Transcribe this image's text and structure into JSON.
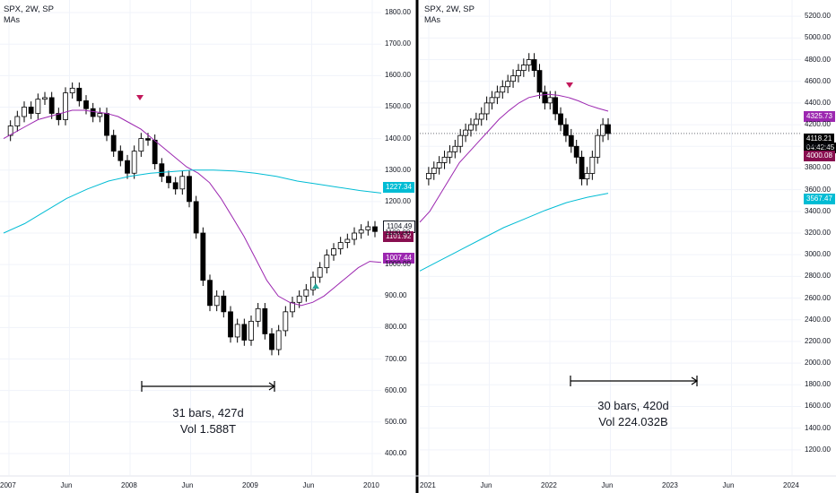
{
  "colors": {
    "background": "#ffffff",
    "grid": "#f0f3fa",
    "candle_up": "#ffffff",
    "candle_down": "#000000",
    "candle_border": "#000000",
    "ma_fast": "#9c27b0",
    "ma_slow": "#00bcd4",
    "divider": "#000000",
    "last_price_bg": "#000000",
    "ma_tag_bg": "#9c27b0",
    "ma_slow_tag_bg": "#00bcd4",
    "ma_dark_tag_bg": "#880e4f"
  },
  "panes": [
    {
      "title": "SPX, 2W, SP",
      "subtitle": "MAs",
      "y_ticks": [
        "1800.00",
        "1700.00",
        "1600.00",
        "1500.00",
        "1400.00",
        "1300.00",
        "1200.00",
        "1100.00",
        "1000.00",
        "900.00",
        "800.00",
        "700.00",
        "600.00",
        "500.00",
        "400.00"
      ],
      "x_ticks": [
        "2007",
        "Jun",
        "2008",
        "Jun",
        "2009",
        "Jun",
        "2010"
      ],
      "price_tags": [
        {
          "label": "1227.34",
          "kind": "ma-slow"
        },
        {
          "label": "1104.49",
          "kind": "last"
        },
        {
          "label": "1101.92",
          "kind": "ma-dark"
        },
        {
          "label": "1007.44",
          "kind": "ma-fast"
        }
      ],
      "measure": {
        "line1": "31 bars, 427d",
        "line2": "Vol 1.588T"
      },
      "chart_data": {
        "type": "line",
        "title": "SPX, 2W, SP",
        "ylim": [
          360,
          1840
        ],
        "y_scale": "linear",
        "close_path_approx": [
          1410,
          1440,
          1470,
          1500,
          1480,
          1525,
          1530,
          1480,
          1460,
          1545,
          1560,
          1520,
          1495,
          1470,
          1480,
          1410,
          1360,
          1330,
          1290,
          1360,
          1400,
          1395,
          1320,
          1280,
          1260,
          1240,
          1280,
          1200,
          1100,
          950,
          870,
          900,
          850,
          770,
          810,
          760,
          820,
          860,
          780,
          730,
          790,
          850,
          880,
          900,
          920,
          960,
          990,
          1030,
          1050,
          1070,
          1080,
          1100,
          1110,
          1120,
          1105
        ],
        "series": [
          {
            "name": "MA fast",
            "values": [
              1400,
              1420,
              1440,
              1460,
              1470,
              1480,
              1490,
              1490,
              1485,
              1480,
              1470,
              1450,
              1430,
              1400,
              1370,
              1340,
              1310,
              1290,
              1260,
              1210,
              1150,
              1090,
              1020,
              950,
              900,
              880,
              870,
              880,
              900,
              930,
              960,
              990,
              1010,
              1007
            ]
          },
          {
            "name": "MA slow",
            "values": [
              1100,
              1130,
              1170,
              1210,
              1240,
              1265,
              1280,
              1290,
              1295,
              1300,
              1300,
              1297,
              1290,
              1280,
              1265,
              1255,
              1245,
              1235,
              1227
            ]
          }
        ]
      }
    },
    {
      "title": "SPX, 2W, SP",
      "subtitle": "MAs",
      "y_ticks": [
        "5200.00",
        "5000.00",
        "4800.00",
        "4600.00",
        "4400.00",
        "4200.00",
        "4000.00",
        "3800.00",
        "3600.00",
        "3400.00",
        "3200.00",
        "3000.00",
        "2800.00",
        "2600.00",
        "2400.00",
        "2200.00",
        "2000.00",
        "1800.00",
        "1600.00",
        "1400.00",
        "1200.00"
      ],
      "x_ticks": [
        "2021",
        "Jun",
        "2022",
        "Jun",
        "2023",
        "Jun",
        "2024"
      ],
      "price_tags": [
        {
          "label": "4325.73",
          "kind": "ma-fast"
        },
        {
          "label": "4118.21",
          "kind": "last"
        },
        {
          "label": "04:42:45",
          "kind": "last-time"
        },
        {
          "label": "4000.08",
          "kind": "ma-dark"
        },
        {
          "label": "3567.47",
          "kind": "ma-slow"
        }
      ],
      "measure": {
        "line1": "30 bars, 420d",
        "line2": "Vol 224.032B"
      },
      "chart_data": {
        "type": "line",
        "title": "SPX, 2W, SP",
        "ylim": [
          1050,
          5350
        ],
        "y_scale": "linear",
        "close_path_approx": [
          3700,
          3750,
          3800,
          3850,
          3900,
          3950,
          4000,
          4100,
          4150,
          4200,
          4250,
          4300,
          4400,
          4450,
          4500,
          4550,
          4600,
          4650,
          4700,
          4750,
          4800,
          4700,
          4500,
          4400,
          4450,
          4300,
          4200,
          4100,
          4000,
          3900,
          3700,
          3750,
          3900,
          4100,
          4200,
          4118
        ],
        "series": [
          {
            "name": "MA fast",
            "values": [
              3300,
              3400,
              3550,
              3700,
              3850,
              3950,
              4050,
              4150,
              4250,
              4330,
              4400,
              4450,
              4470,
              4480,
              4470,
              4450,
              4420,
              4380,
              4350,
              4325
            ]
          },
          {
            "name": "MA slow",
            "values": [
              2850,
              2950,
              3050,
              3150,
              3250,
              3330,
              3410,
              3480,
              3530,
              3567
            ]
          }
        ]
      }
    }
  ]
}
